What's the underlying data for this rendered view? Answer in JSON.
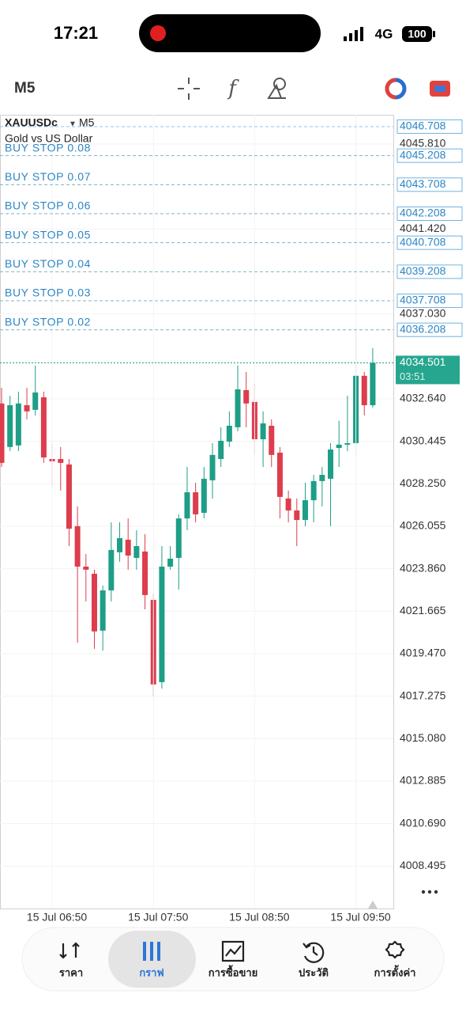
{
  "status_bar": {
    "time": "17:21",
    "network": "4G",
    "battery": "100"
  },
  "toolbar": {
    "timeframe": "M5"
  },
  "chart_data": {
    "type": "candlestick",
    "symbol": "XAUUSDc",
    "timeframe": "M5",
    "description": "Gold vs US Dollar",
    "categories": [
      null,
      null,
      null,
      null,
      null,
      null,
      "15 Jul 06:50",
      null,
      null,
      null,
      null,
      null,
      null,
      null,
      null,
      null,
      null,
      null,
      "15 Jul 07:50",
      null,
      null,
      null,
      null,
      null,
      null,
      null,
      null,
      null,
      null,
      null,
      "15 Jul 08:50",
      null,
      null,
      null,
      null,
      null,
      null,
      null,
      null,
      null,
      null,
      null,
      "15 Jul 09:50",
      null,
      null
    ],
    "open": [
      4032.4,
      4030.15,
      4030.23,
      4032.31,
      4032.07,
      4032.72,
      4029.53,
      4029.53,
      4029.25,
      4026.06,
      4023.97,
      4023.6,
      4020.66,
      4022.74,
      4024.71,
      4025.36,
      4024.42,
      4024.75,
      4022.25,
      4018.0,
      4023.97,
      4024.42,
      4026.46,
      4027.81,
      4026.75,
      4028.43,
      4029.53,
      4030.43,
      4031.17,
      4033.09,
      4032.48,
      4030.55,
      4031.25,
      4029.86,
      4027.49,
      4026.87,
      4026.38,
      4027.4,
      4028.39,
      4028.51,
      4030.1,
      4030.27,
      4030.35,
      4033.83,
      4032.31
    ],
    "high": [
      4033.21,
      4032.8,
      4033.01,
      4033.21,
      4034.36,
      4033.01,
      4030.35,
      4030.15,
      4029.53,
      4027.08,
      4024.62,
      4023.81,
      4022.99,
      4026.26,
      4026.26,
      4026.46,
      4025.85,
      4025.65,
      4022.58,
      4025.03,
      4025.03,
      4026.67,
      4029.12,
      4028.3,
      4029.12,
      4030.35,
      4031.17,
      4031.99,
      4034.36,
      4034.03,
      4033.42,
      4031.99,
      4031.58,
      4030.15,
      4027.9,
      4027.49,
      4028.3,
      4028.71,
      4029.12,
      4030.35,
      4031.5,
      4032.8,
      4036.28,
      4034.03,
      4035.26
    ],
    "low": [
      4029.12,
      4029.94,
      4029.94,
      4031.58,
      4031.78,
      4029.33,
      4028.1,
      4027.9,
      4025.03,
      4020.04,
      4022.17,
      4019.72,
      4019.63,
      4022.17,
      4024.22,
      4023.81,
      4023.81,
      4021.76,
      4017.26,
      4017.67,
      4023.81,
      4022.78,
      4025.85,
      4026.26,
      4026.46,
      4027.49,
      4029.12,
      4030.15,
      4030.96,
      4031.17,
      4029.74,
      4029.12,
      4029.12,
      4026.46,
      4026.26,
      4025.03,
      4026.06,
      4026.26,
      4027.08,
      4026.06,
      4029.12,
      4029.94,
      4029.74,
      4031.78,
      4032.19
    ],
    "close": [
      4029.33,
      4032.31,
      4032.4,
      4031.99,
      4032.97,
      4029.61,
      4029.41,
      4029.33,
      4025.93,
      4023.97,
      4023.81,
      4020.62,
      4022.74,
      4024.83,
      4025.44,
      4024.54,
      4025.03,
      4022.5,
      4017.88,
      4023.97,
      4024.38,
      4026.46,
      4027.81,
      4026.67,
      4028.51,
      4029.74,
      4030.47,
      4031.25,
      4033.13,
      4032.4,
      4030.55,
      4031.37,
      4029.74,
      4027.57,
      4026.87,
      4026.38,
      4027.4,
      4028.39,
      4028.71,
      4030.02,
      4030.27,
      4030.35,
      4033.83,
      4032.31,
      4034.501
    ],
    "up_color": "#1e9e86",
    "down_color": "#dd3d4c",
    "ylim": [
      4006.3,
      4047.32
    ],
    "yticks": [
      {
        "value": 4045.81,
        "label": "4045.810"
      },
      {
        "value": 4041.42,
        "label": "4041.420"
      },
      {
        "value": 4037.03,
        "label": "4037.030"
      },
      {
        "value": 4032.64,
        "label": "4032.640"
      },
      4030.445,
      {
        "value": 4028.25,
        "label": "4028.250"
      },
      4026.055,
      {
        "value": 4023.86,
        "label": "4023.860"
      },
      4021.665,
      {
        "value": 4019.47,
        "label": "4019.470"
      },
      4017.275,
      {
        "value": 4015.08,
        "label": "4015.080"
      },
      4012.885,
      {
        "value": 4010.69,
        "label": "4010.690"
      },
      4008.495
    ],
    "grid": true,
    "levels": [
      4046.708
    ],
    "orders": [
      {
        "name": "BUY STOP 0.08",
        "price": 4045.208
      },
      {
        "name": "BUY STOP 0.07",
        "price": 4043.708
      },
      {
        "name": "BUY STOP 0.06",
        "price": 4042.208
      },
      {
        "name": "BUY STOP 0.05",
        "price": 4040.708
      },
      {
        "name": "BUY STOP 0.04",
        "price": 4039.208
      },
      {
        "name": "BUY STOP 0.03",
        "price": 4037.708
      },
      {
        "name": "BUY STOP 0.02",
        "price": 4036.208
      }
    ],
    "order_color": "#2b86c5",
    "current_price": 4034.501,
    "countdown": "03:51"
  },
  "nav": {
    "tabs": [
      {
        "label": "ราคา"
      },
      {
        "label": "กราฟ"
      },
      {
        "label": "การซื้อขาย"
      },
      {
        "label": "ประวัติ"
      },
      {
        "label": "การตั้งค่า"
      }
    ],
    "active": 1
  }
}
